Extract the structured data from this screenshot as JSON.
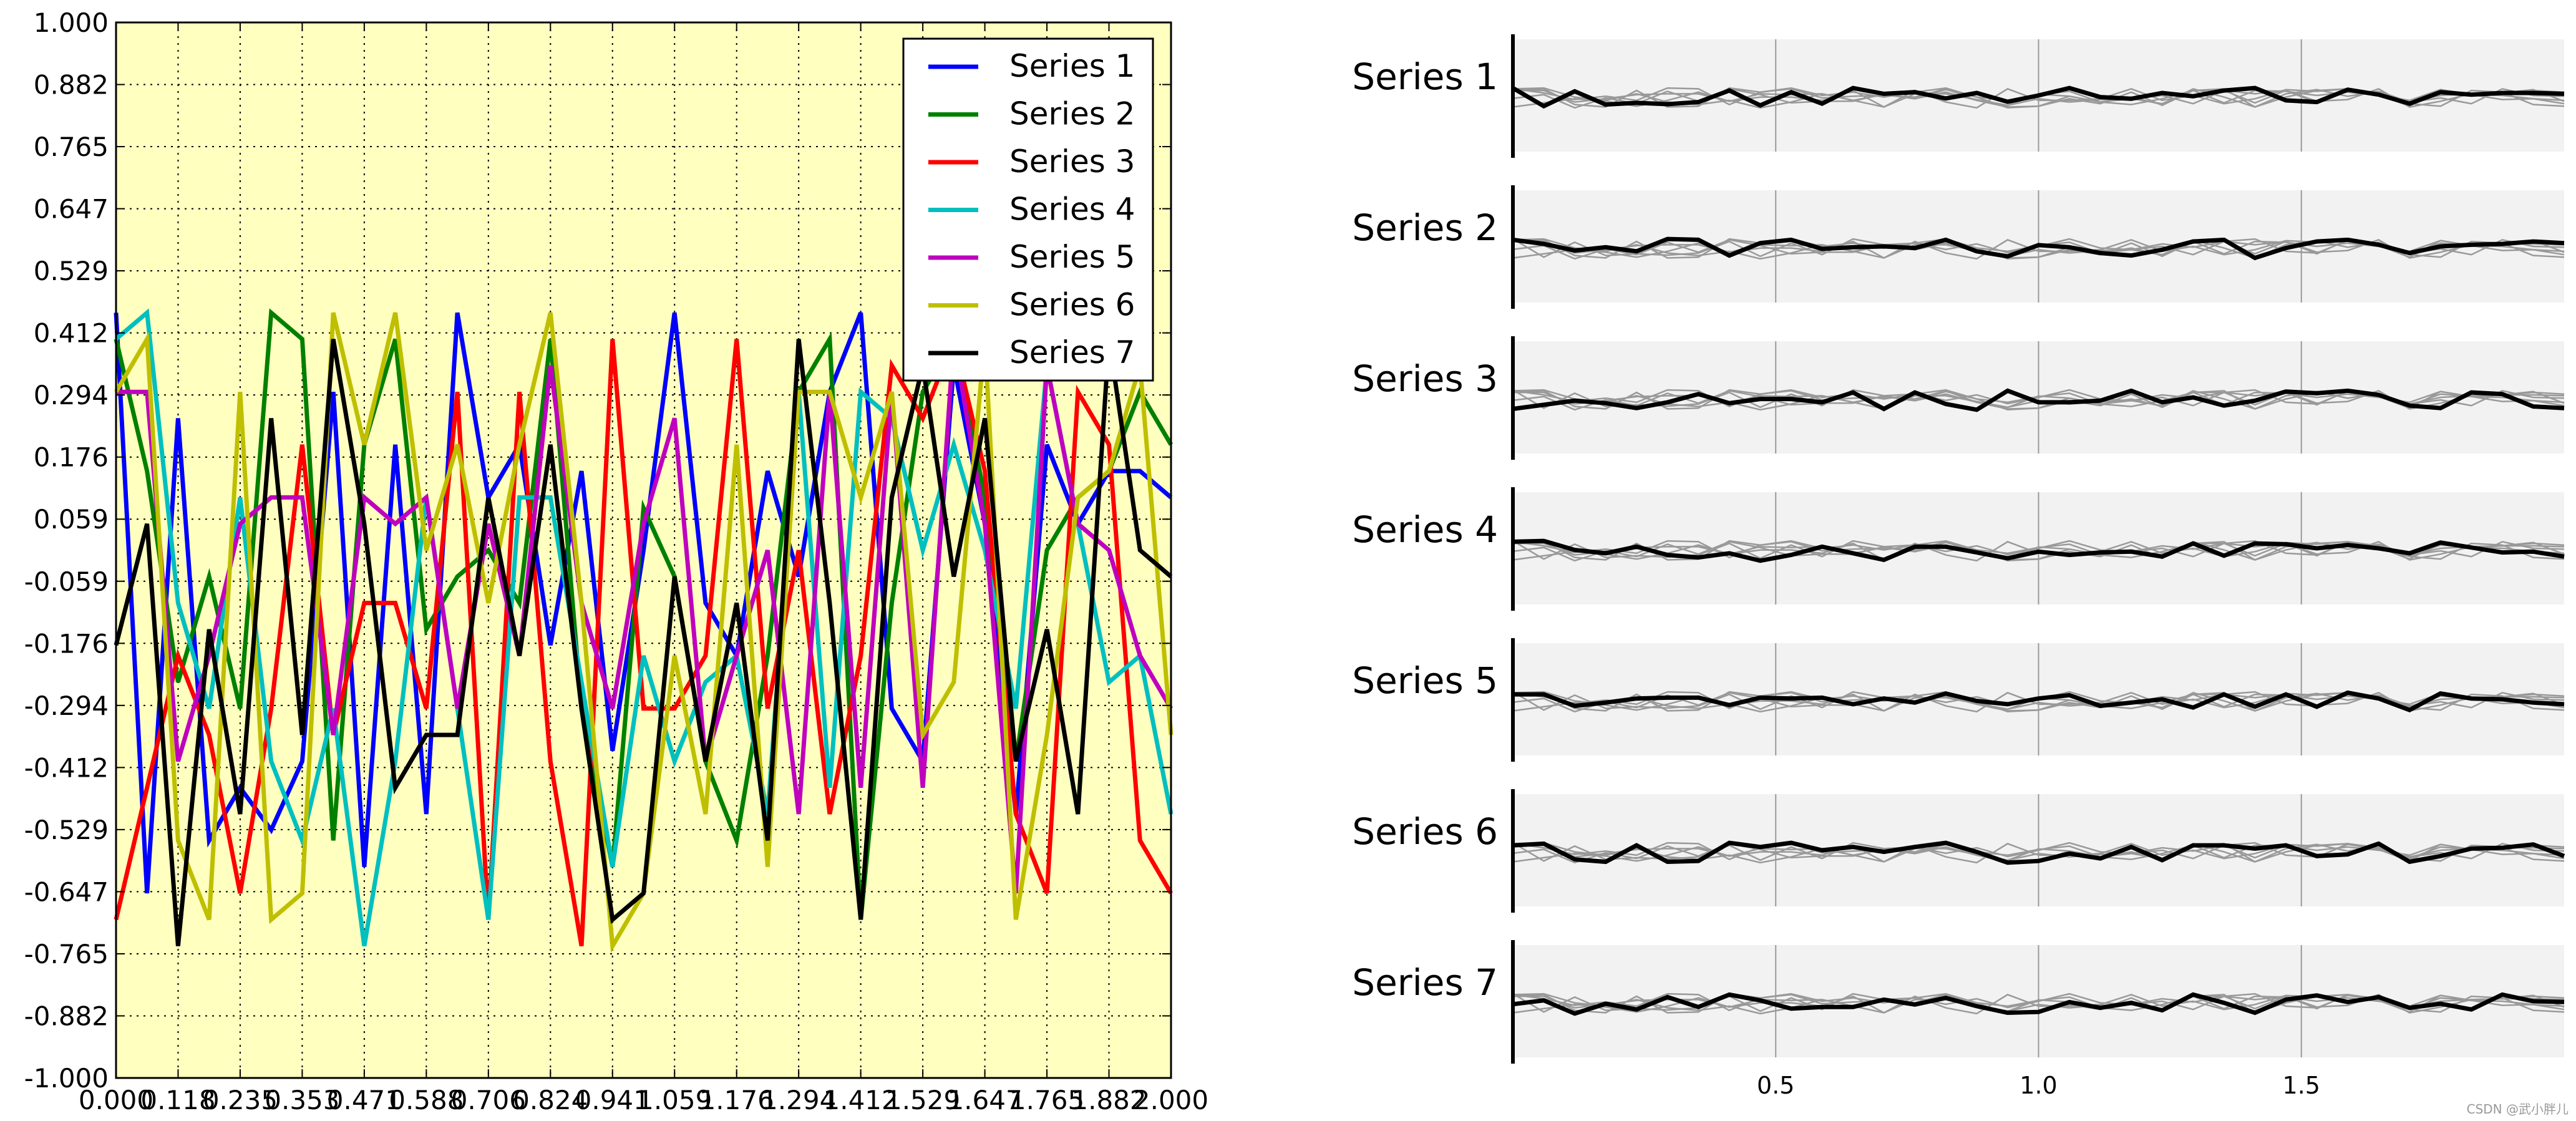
{
  "chart_data": [
    {
      "type": "line",
      "title": "",
      "xlabel": "",
      "ylabel": "",
      "xlim": [
        0.0,
        2.0
      ],
      "ylim": [
        -1.0,
        1.0
      ],
      "grid": true,
      "grid_style": "dotted",
      "background_color": "#ffffc0",
      "legend_placement": "top-right",
      "x_tick_labels": [
        "0.000",
        "0.118",
        "0.235",
        "0.353",
        "0.471",
        "0.588",
        "0.706",
        "0.824",
        "0.941",
        "1.059",
        "1.176",
        "1.294",
        "1.412",
        "1.529",
        "1.647",
        "1.765",
        "1.882",
        "2.000"
      ],
      "y_tick_labels": [
        "1.000",
        "0.882",
        "0.765",
        "0.647",
        "0.529",
        "0.412",
        "0.294",
        "0.176",
        "0.059",
        "-0.059",
        "-0.176",
        "-0.294",
        "-0.412",
        "-0.529",
        "-0.647",
        "-0.765",
        "-0.882",
        "-1.000"
      ],
      "x": [
        0.0,
        0.0588,
        0.1176,
        0.1765,
        0.2353,
        0.2941,
        0.3529,
        0.4118,
        0.4706,
        0.5294,
        0.5882,
        0.6471,
        0.7059,
        0.7647,
        0.8235,
        0.8824,
        0.9412,
        1.0,
        1.0588,
        1.1176,
        1.1765,
        1.2353,
        1.2941,
        1.3529,
        1.4118,
        1.4706,
        1.5294,
        1.5882,
        1.6471,
        1.7059,
        1.7647,
        1.8235,
        1.8824,
        1.9412,
        2.0
      ],
      "series": [
        {
          "name": "Series 1",
          "color": "#0000ff",
          "values": [
            0.45,
            -0.65,
            0.25,
            -0.55,
            -0.45,
            -0.53,
            -0.4,
            0.3,
            -0.6,
            0.2,
            -0.5,
            0.45,
            0.1,
            0.2,
            -0.18,
            0.15,
            -0.38,
            0.0,
            0.45,
            -0.1,
            -0.2,
            0.15,
            -0.05,
            0.3,
            0.45,
            -0.3,
            -0.4,
            0.35,
            0.05,
            -0.5,
            0.2,
            0.05,
            0.15,
            0.15,
            0.1
          ]
        },
        {
          "name": "Series 2",
          "color": "#008000",
          "values": [
            0.4,
            0.15,
            -0.25,
            -0.05,
            -0.3,
            0.45,
            0.4,
            -0.55,
            0.2,
            0.4,
            -0.15,
            -0.05,
            0.0,
            -0.1,
            0.4,
            -0.3,
            -0.6,
            0.08,
            -0.05,
            -0.4,
            -0.55,
            -0.2,
            0.3,
            0.4,
            -0.7,
            -0.1,
            0.3,
            0.4,
            0.1,
            -0.4,
            0.0,
            0.1,
            0.15,
            0.3,
            0.2
          ]
        },
        {
          "name": "Series 3",
          "color": "#ff0000",
          "values": [
            -0.7,
            -0.45,
            -0.2,
            -0.35,
            -0.65,
            -0.3,
            0.2,
            -0.35,
            -0.1,
            -0.1,
            -0.3,
            0.3,
            -0.7,
            0.3,
            -0.4,
            -0.75,
            0.4,
            -0.3,
            -0.3,
            -0.2,
            0.4,
            -0.3,
            0.0,
            -0.5,
            -0.2,
            0.35,
            0.25,
            0.4,
            0.15,
            -0.5,
            -0.65,
            0.3,
            0.2,
            -0.55,
            -0.65
          ]
        },
        {
          "name": "Series 4",
          "color": "#00bfbf",
          "values": [
            0.4,
            0.45,
            -0.1,
            -0.3,
            0.1,
            -0.4,
            -0.55,
            -0.3,
            -0.75,
            -0.4,
            0.1,
            -0.3,
            -0.7,
            0.1,
            0.1,
            -0.25,
            -0.6,
            -0.2,
            -0.4,
            -0.25,
            -0.2,
            -0.5,
            0.3,
            -0.45,
            0.3,
            0.25,
            0.0,
            0.2,
            0.0,
            -0.3,
            0.35,
            0.05,
            -0.25,
            -0.2,
            -0.5
          ]
        },
        {
          "name": "Series 5",
          "color": "#bf00bf",
          "values": [
            0.3,
            0.3,
            -0.4,
            -0.2,
            0.05,
            0.1,
            0.1,
            -0.35,
            0.1,
            0.05,
            0.1,
            -0.3,
            0.05,
            -0.2,
            0.35,
            -0.1,
            -0.3,
            0.05,
            0.25,
            -0.4,
            -0.2,
            0.0,
            -0.5,
            0.3,
            -0.45,
            0.3,
            -0.45,
            0.4,
            0.05,
            -0.65,
            0.35,
            0.05,
            0.0,
            -0.2,
            -0.3
          ]
        },
        {
          "name": "Series 6",
          "color": "#bfbf00",
          "values": [
            0.3,
            0.4,
            -0.55,
            -0.7,
            0.3,
            -0.7,
            -0.65,
            0.45,
            0.2,
            0.45,
            0.0,
            0.2,
            -0.1,
            0.2,
            0.45,
            -0.1,
            -0.75,
            -0.65,
            -0.2,
            -0.5,
            0.2,
            -0.6,
            0.3,
            0.3,
            0.1,
            0.3,
            -0.35,
            -0.25,
            0.4,
            -0.7,
            -0.35,
            0.1,
            0.15,
            0.35,
            -0.35
          ]
        },
        {
          "name": "Series 7",
          "color": "#000000",
          "values": [
            -0.18,
            0.05,
            -0.75,
            -0.15,
            -0.5,
            0.25,
            -0.35,
            0.4,
            0.05,
            -0.45,
            -0.35,
            -0.35,
            0.1,
            -0.2,
            0.2,
            -0.3,
            -0.7,
            -0.65,
            -0.05,
            -0.4,
            -0.1,
            -0.55,
            0.4,
            -0.1,
            -0.7,
            0.1,
            0.35,
            -0.05,
            0.25,
            -0.4,
            -0.15,
            -0.5,
            0.4,
            0.0,
            -0.05
          ]
        }
      ]
    },
    {
      "type": "line",
      "layout": "small-multiples",
      "title": "",
      "xlabel": "",
      "ylabel": "",
      "xlim": [
        0.0,
        2.0
      ],
      "x_tick_labels": [
        "0.5",
        "1.0",
        "1.5"
      ],
      "highlight_color": "#000000",
      "context_color": "#999999",
      "panel_background": "#f2f2f2",
      "panel_labels": [
        "Series 1",
        "Series 2",
        "Series 3",
        "Series 4",
        "Series 5",
        "Series 6",
        "Series 7"
      ]
    }
  ],
  "watermark": "CSDN @武小胖儿"
}
